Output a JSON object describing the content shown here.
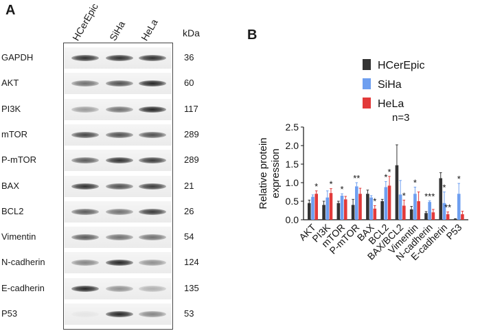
{
  "panel_a": {
    "label": "A",
    "lanes": [
      "HCerEpic",
      "SiHa",
      "HeLa"
    ],
    "kda_header": "kDa",
    "rows": [
      {
        "protein": "GAPDH",
        "kda": "36",
        "intensity": [
          0.9,
          0.9,
          0.9
        ]
      },
      {
        "protein": "AKT",
        "kda": "60",
        "intensity": [
          0.6,
          0.75,
          0.95
        ]
      },
      {
        "protein": "PI3K",
        "kda": "117",
        "intensity": [
          0.4,
          0.6,
          0.95
        ]
      },
      {
        "protein": "mTOR",
        "kda": "289",
        "intensity": [
          0.8,
          0.75,
          0.75
        ]
      },
      {
        "protein": "P-mTOR",
        "kda": "289",
        "intensity": [
          0.7,
          0.9,
          0.85
        ]
      },
      {
        "protein": "BAX",
        "kda": "21",
        "intensity": [
          0.9,
          0.75,
          0.85
        ]
      },
      {
        "protein": "BCL2",
        "kda": "26",
        "intensity": [
          0.7,
          0.6,
          0.85
        ]
      },
      {
        "protein": "Vimentin",
        "kda": "54",
        "intensity": [
          0.7,
          0.6,
          0.6
        ]
      },
      {
        "protein": "N-cadherin",
        "kda": "124",
        "intensity": [
          0.5,
          0.95,
          0.45
        ]
      },
      {
        "protein": "E-cadherin",
        "kda": "135",
        "intensity": [
          0.95,
          0.45,
          0.3
        ]
      },
      {
        "protein": "P53",
        "kda": "53",
        "intensity": [
          0.05,
          0.95,
          0.5
        ]
      }
    ]
  },
  "panel_b": {
    "label": "B",
    "note": "n=3",
    "colors": {
      "HCerEpic": "#333333",
      "SiHa": "#6e9ff0",
      "HeLa": "#e23a3a"
    }
  },
  "chart_data": {
    "type": "bar",
    "ylabel": "Relative protein expression",
    "ylim": [
      0,
      2.5
    ],
    "yticks": [
      "0.0",
      "0.5",
      "1.0",
      "1.5",
      "2.0",
      "2.5"
    ],
    "categories": [
      "AKT",
      "PI3K",
      "mTOR",
      "P-mTOR",
      "BAX",
      "BCL2",
      "BAX/BCL2",
      "Vimentin",
      "N-cadherin",
      "E-cadherin",
      "P53"
    ],
    "series": [
      {
        "name": "HCerEpic",
        "values": [
          0.45,
          0.4,
          0.45,
          0.4,
          0.7,
          0.5,
          1.47,
          0.28,
          0.18,
          1.12,
          0.02
        ],
        "errors": [
          0.08,
          0.1,
          0.05,
          0.15,
          0.1,
          0.05,
          0.55,
          0.08,
          0.04,
          0.15,
          0.01
        ]
      },
      {
        "name": "SiHa",
        "values": [
          0.62,
          0.6,
          0.65,
          0.9,
          0.6,
          0.88,
          0.68,
          0.7,
          0.48,
          0.45,
          0.7
        ],
        "errors": [
          0.05,
          0.18,
          0.05,
          0.1,
          0.05,
          0.15,
          0.38,
          0.18,
          0.03,
          0.3,
          0.28
        ]
      },
      {
        "name": "HeLa",
        "values": [
          0.7,
          0.72,
          0.55,
          0.7,
          0.3,
          0.92,
          0.38,
          0.5,
          0.2,
          0.15,
          0.15
        ],
        "errors": [
          0.08,
          0.12,
          0.08,
          0.15,
          0.08,
          0.25,
          0.15,
          0.25,
          0.08,
          0.06,
          0.08
        ]
      }
    ],
    "significance": [
      {
        "category": "AKT",
        "series": "HeLa",
        "text": "*"
      },
      {
        "category": "PI3K",
        "series": "HeLa",
        "text": "*"
      },
      {
        "category": "mTOR",
        "series": "SiHa",
        "text": "*"
      },
      {
        "category": "P-mTOR",
        "series": "SiHa",
        "text": "**"
      },
      {
        "category": "BAX",
        "series": "HeLa",
        "text": "*"
      },
      {
        "category": "BCL2",
        "series": "SiHa",
        "text": "*"
      },
      {
        "category": "BCL2",
        "series": "HeLa",
        "text": "*"
      },
      {
        "category": "BAX/BCL2",
        "series": "HeLa",
        "text": "*"
      },
      {
        "category": "Vimentin",
        "series": "SiHa",
        "text": "*"
      },
      {
        "category": "N-cadherin",
        "series": "SiHa",
        "text": "***"
      },
      {
        "category": "E-cadherin",
        "series": "SiHa",
        "text": "*"
      },
      {
        "category": "E-cadherin",
        "series": "HeLa",
        "text": "**"
      },
      {
        "category": "P53",
        "series": "SiHa",
        "text": "*"
      }
    ],
    "legend_position": "top-right",
    "grid": false
  }
}
